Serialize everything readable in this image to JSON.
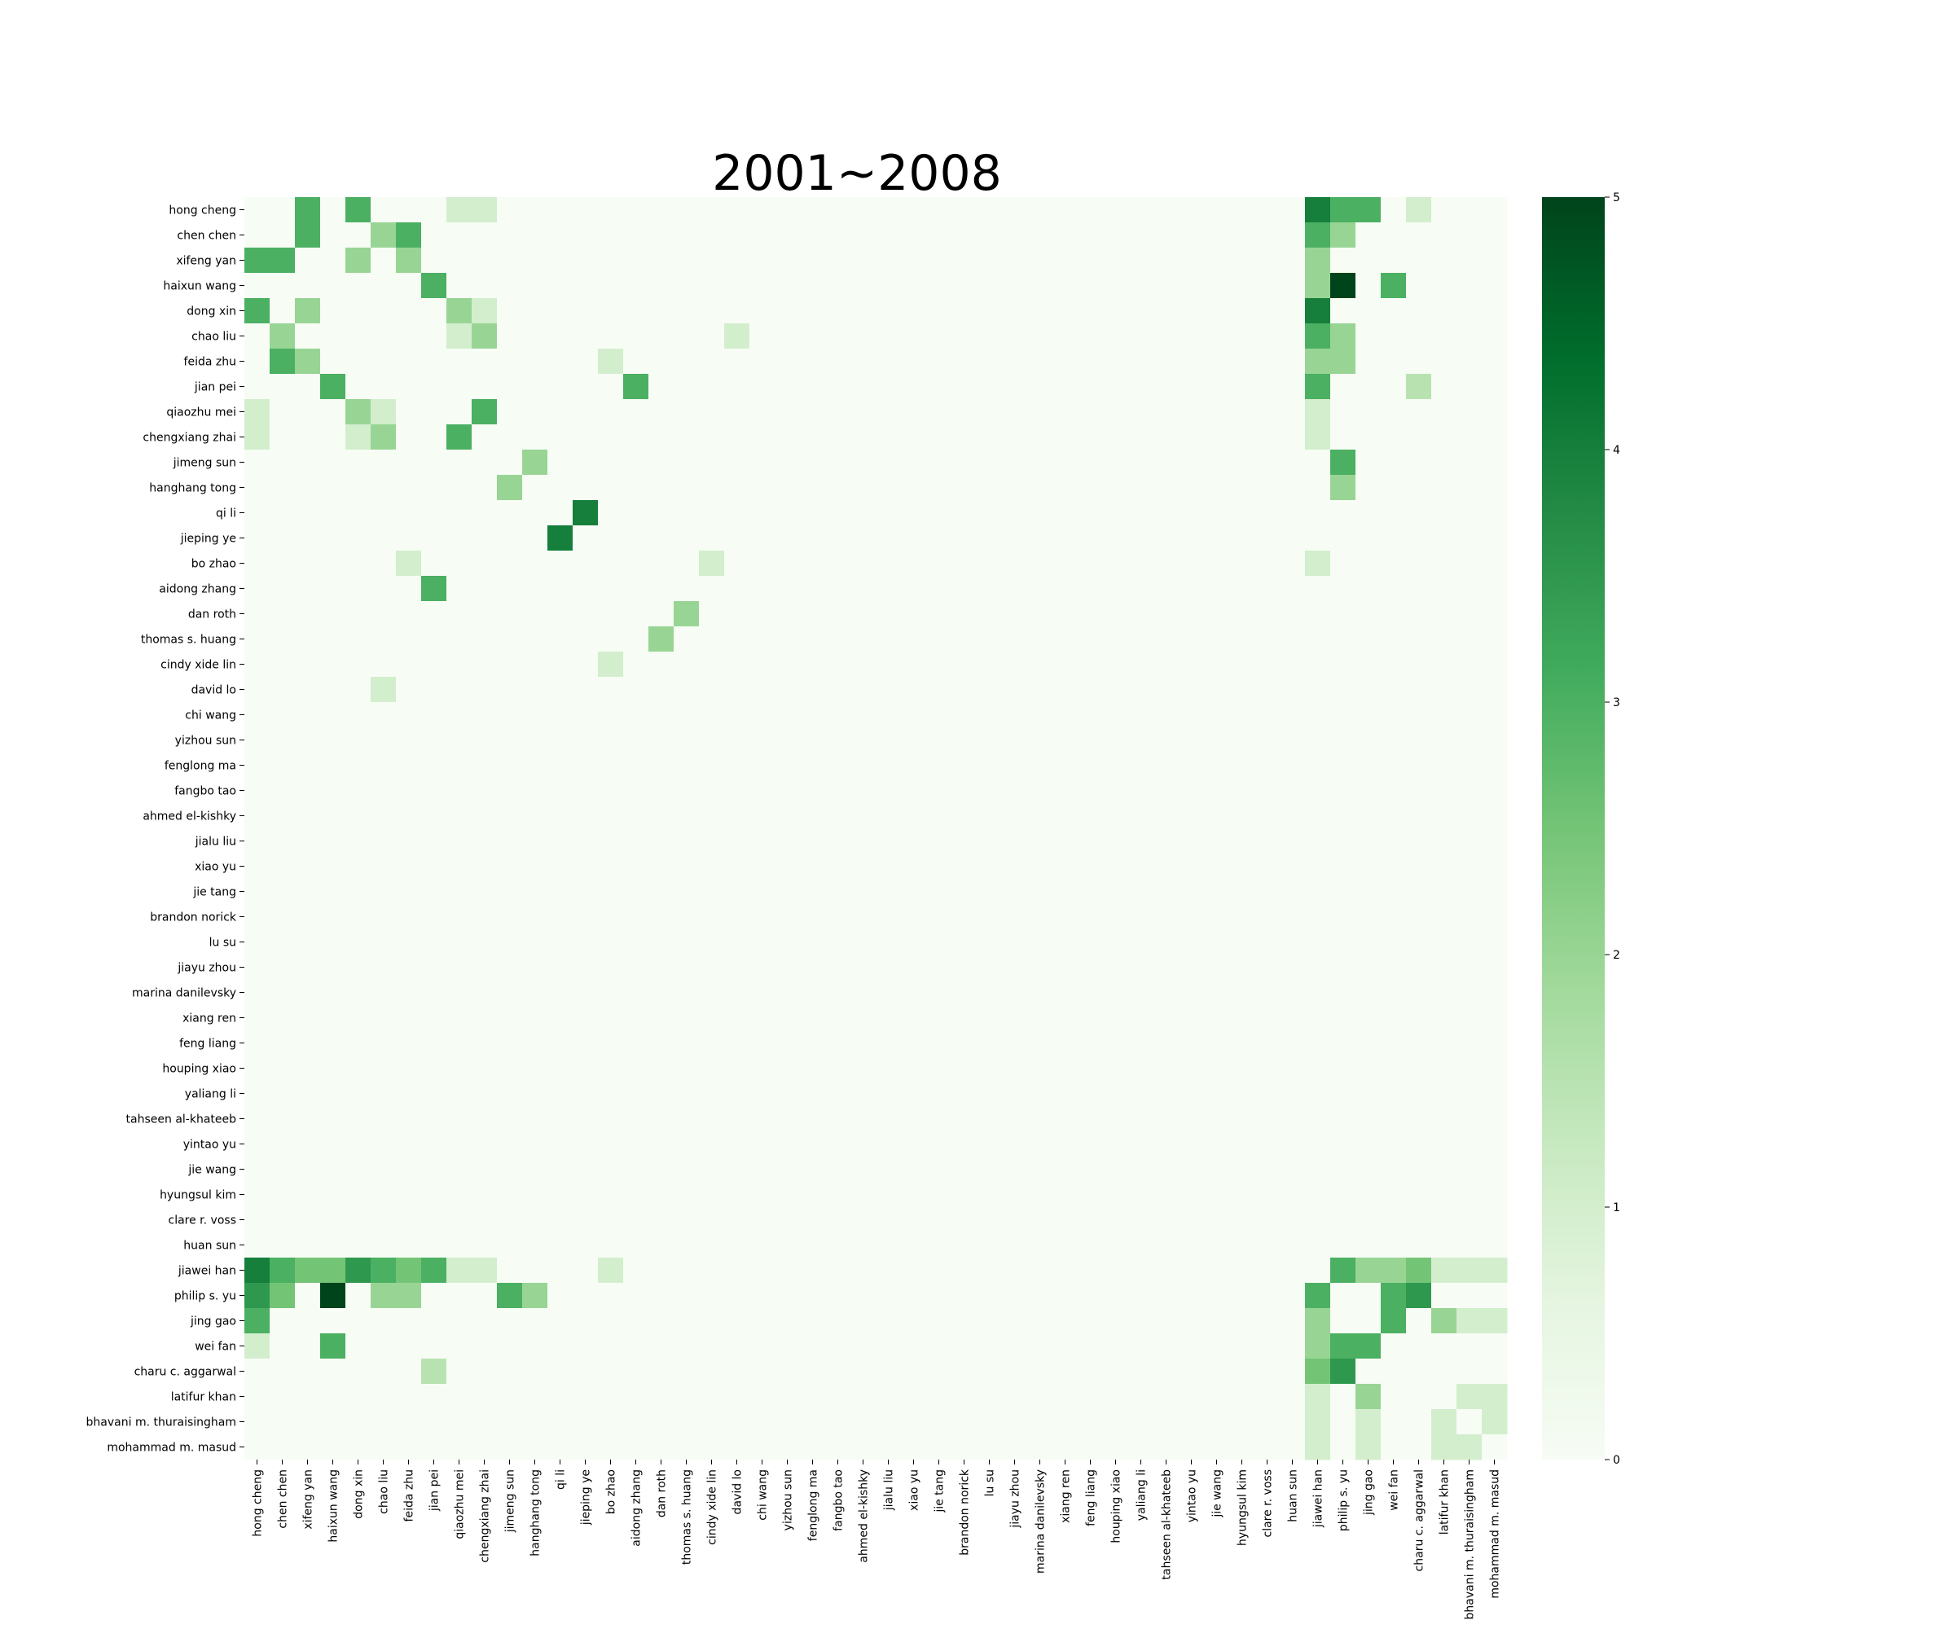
{
  "chart_data": {
    "type": "heatmap",
    "title": "2001~2008",
    "colormap": "Greens",
    "vmin": 0,
    "vmax": 5,
    "colorbar_ticks": [
      0,
      1,
      2,
      3,
      4,
      5
    ],
    "labels": [
      "hong cheng",
      "chen chen",
      "xifeng yan",
      "haixun wang",
      "dong xin",
      "chao liu",
      "feida zhu",
      "jian pei",
      "qiaozhu mei",
      "chengxiang zhai",
      "jimeng sun",
      "hanghang tong",
      "qi li",
      "jieping ye",
      "bo zhao",
      "aidong zhang",
      "dan roth",
      "thomas s. huang",
      "cindy xide lin",
      "david lo",
      "chi wang",
      "yizhou sun",
      "fenglong ma",
      "fangbo tao",
      "ahmed el-kishky",
      "jialu liu",
      "xiao yu",
      "jie tang",
      "brandon norick",
      "lu su",
      "jiayu zhou",
      "marina danilevsky",
      "xiang ren",
      "feng liang",
      "houping xiao",
      "yaliang li",
      "tahseen al-khateeb",
      "yintao yu",
      "jie wang",
      "hyungsul kim",
      "clare r. voss",
      "huan sun",
      "jiawei han",
      "philip s. yu",
      "jing gao",
      "wei fan",
      "charu c. aggarwal",
      "latifur khan",
      "bhavani m. thuraisingham",
      "mohammad m. masud"
    ],
    "cells": [
      [
        0,
        2,
        3
      ],
      [
        0,
        4,
        3
      ],
      [
        0,
        8,
        1
      ],
      [
        0,
        9,
        1
      ],
      [
        0,
        42,
        4
      ],
      [
        0,
        43,
        3
      ],
      [
        0,
        44,
        3
      ],
      [
        0,
        46,
        1
      ],
      [
        1,
        2,
        3
      ],
      [
        1,
        5,
        2
      ],
      [
        1,
        6,
        3
      ],
      [
        1,
        42,
        3
      ],
      [
        1,
        43,
        2
      ],
      [
        2,
        0,
        3
      ],
      [
        2,
        1,
        3
      ],
      [
        2,
        4,
        2
      ],
      [
        2,
        6,
        2
      ],
      [
        2,
        42,
        2
      ],
      [
        3,
        7,
        3
      ],
      [
        3,
        42,
        2
      ],
      [
        3,
        43,
        5
      ],
      [
        3,
        45,
        3
      ],
      [
        4,
        0,
        3
      ],
      [
        4,
        2,
        2
      ],
      [
        4,
        8,
        2
      ],
      [
        4,
        9,
        1
      ],
      [
        4,
        42,
        4
      ],
      [
        5,
        1,
        2
      ],
      [
        5,
        8,
        1
      ],
      [
        5,
        9,
        2
      ],
      [
        5,
        19,
        1
      ],
      [
        5,
        42,
        3
      ],
      [
        5,
        43,
        2
      ],
      [
        6,
        1,
        3
      ],
      [
        6,
        2,
        2
      ],
      [
        6,
        14,
        1
      ],
      [
        6,
        42,
        2
      ],
      [
        6,
        43,
        2
      ],
      [
        7,
        3,
        3
      ],
      [
        7,
        15,
        3
      ],
      [
        7,
        42,
        3
      ],
      [
        7,
        46,
        1.5
      ],
      [
        8,
        0,
        1
      ],
      [
        8,
        4,
        2
      ],
      [
        8,
        5,
        1
      ],
      [
        8,
        9,
        3
      ],
      [
        8,
        42,
        1
      ],
      [
        9,
        0,
        1
      ],
      [
        9,
        4,
        1
      ],
      [
        9,
        5,
        2
      ],
      [
        9,
        8,
        3
      ],
      [
        9,
        42,
        1
      ],
      [
        10,
        11,
        2
      ],
      [
        10,
        43,
        3
      ],
      [
        11,
        10,
        2
      ],
      [
        11,
        43,
        2
      ],
      [
        12,
        13,
        4
      ],
      [
        13,
        12,
        4
      ],
      [
        14,
        6,
        1
      ],
      [
        14,
        18,
        1
      ],
      [
        14,
        42,
        1
      ],
      [
        15,
        7,
        3
      ],
      [
        16,
        17,
        2
      ],
      [
        17,
        16,
        2
      ],
      [
        18,
        14,
        1
      ],
      [
        19,
        5,
        1
      ],
      [
        42,
        0,
        4
      ],
      [
        42,
        1,
        3
      ],
      [
        42,
        2,
        2.5
      ],
      [
        42,
        3,
        2.5
      ],
      [
        42,
        4,
        3.5
      ],
      [
        42,
        5,
        3
      ],
      [
        42,
        6,
        2.5
      ],
      [
        42,
        7,
        3
      ],
      [
        42,
        8,
        1
      ],
      [
        42,
        9,
        1
      ],
      [
        42,
        14,
        1
      ],
      [
        42,
        43,
        3
      ],
      [
        42,
        44,
        2
      ],
      [
        42,
        45,
        2
      ],
      [
        42,
        46,
        2.5
      ],
      [
        42,
        47,
        1
      ],
      [
        42,
        48,
        1
      ],
      [
        42,
        49,
        1
      ],
      [
        43,
        0,
        3.5
      ],
      [
        43,
        1,
        2.5
      ],
      [
        43,
        3,
        5
      ],
      [
        43,
        5,
        2
      ],
      [
        43,
        6,
        2
      ],
      [
        43,
        10,
        3
      ],
      [
        43,
        11,
        2
      ],
      [
        43,
        42,
        3
      ],
      [
        43,
        45,
        3
      ],
      [
        43,
        46,
        3.5
      ],
      [
        44,
        0,
        3
      ],
      [
        44,
        42,
        2
      ],
      [
        44,
        45,
        3
      ],
      [
        44,
        47,
        2
      ],
      [
        44,
        48,
        1
      ],
      [
        44,
        49,
        1
      ],
      [
        45,
        0,
        1
      ],
      [
        45,
        3,
        3
      ],
      [
        45,
        42,
        2
      ],
      [
        45,
        43,
        3
      ],
      [
        45,
        44,
        3
      ],
      [
        46,
        7,
        1.5
      ],
      [
        46,
        42,
        2.5
      ],
      [
        46,
        43,
        3.5
      ],
      [
        47,
        42,
        1
      ],
      [
        47,
        44,
        2
      ],
      [
        47,
        48,
        1
      ],
      [
        47,
        49,
        1
      ],
      [
        48,
        42,
        1
      ],
      [
        48,
        44,
        1
      ],
      [
        48,
        47,
        1
      ],
      [
        48,
        49,
        1
      ],
      [
        49,
        42,
        1
      ],
      [
        49,
        44,
        1
      ],
      [
        49,
        47,
        1
      ],
      [
        49,
        48,
        1
      ]
    ]
  }
}
